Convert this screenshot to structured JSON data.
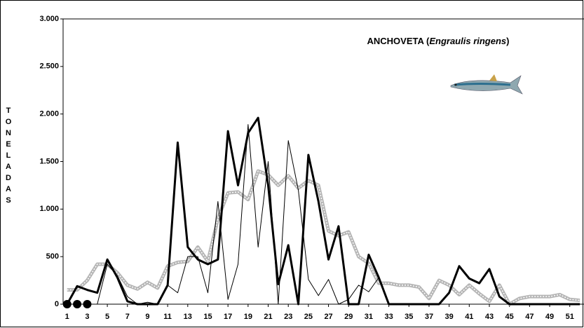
{
  "chart_data": {
    "type": "line",
    "title_parts": [
      {
        "text": "ANCHOVETA (",
        "italic": false
      },
      {
        "text": "Engraulis ringens",
        "italic": true
      },
      {
        "text": ")",
        "italic": false
      }
    ],
    "y_label": "TONELADAS",
    "x": [
      1,
      2,
      3,
      4,
      5,
      6,
      7,
      8,
      9,
      10,
      11,
      12,
      13,
      14,
      15,
      16,
      17,
      18,
      19,
      20,
      21,
      22,
      23,
      24,
      25,
      26,
      27,
      28,
      29,
      30,
      31,
      32,
      33,
      34,
      35,
      36,
      37,
      38,
      39,
      40,
      41,
      42,
      43,
      44,
      45,
      46,
      47,
      48,
      49,
      50,
      51,
      52
    ],
    "xlim": [
      0.6,
      53.6
    ],
    "xticks": [
      1,
      3,
      5,
      7,
      9,
      11,
      13,
      15,
      17,
      19,
      21,
      23,
      25,
      27,
      29,
      31,
      33,
      35,
      37,
      39,
      41,
      43,
      45,
      47,
      49,
      51,
      53
    ],
    "ylim": [
      0,
      3000
    ],
    "yticks": [
      0,
      500,
      {
        "value": 1000,
        "label": "1.000"
      },
      {
        "value": 1500,
        "label": "1.500"
      },
      {
        "value": 2000,
        "label": "2.000"
      },
      {
        "value": 2500,
        "label": "2.500"
      },
      {
        "value": 3000,
        "label": "3.000"
      }
    ],
    "grid": false,
    "series": [
      {
        "color": "#b5b5b5",
        "line_width": 5,
        "dashed_overlay": true,
        "marker": false,
        "values": [
          150,
          150,
          250,
          420,
          420,
          330,
          200,
          160,
          230,
          170,
          400,
          440,
          450,
          600,
          450,
          900,
          1170,
          1180,
          1100,
          1400,
          1360,
          1250,
          1350,
          1220,
          1300,
          1250,
          770,
          720,
          760,
          500,
          430,
          220,
          220,
          200,
          200,
          180,
          60,
          250,
          200,
          100,
          200,
          110,
          30,
          200,
          0,
          60,
          80,
          80,
          80,
          100,
          50,
          40
        ]
      },
      {
        "color": "#000000",
        "line_width": 1,
        "dashed_overlay": false,
        "marker": false,
        "values": [
          0,
          0,
          0,
          0,
          420,
          300,
          80,
          0,
          20,
          0,
          200,
          120,
          500,
          500,
          120,
          1080,
          50,
          420,
          1890,
          600,
          1500,
          0,
          1720,
          1200,
          260,
          90,
          260,
          0,
          50,
          200,
          130,
          280,
          0,
          0,
          0,
          0,
          0,
          0,
          0,
          0,
          0,
          0,
          0,
          0,
          0,
          0,
          0,
          0,
          0,
          0,
          0,
          0
        ]
      },
      {
        "color": "#000000",
        "line_width": 3,
        "dashed_overlay": false,
        "marker": false,
        "values": [
          0,
          190,
          150,
          120,
          470,
          280,
          30,
          0,
          0,
          0,
          200,
          1700,
          600,
          470,
          420,
          470,
          1820,
          1250,
          1800,
          1960,
          1250,
          210,
          620,
          0,
          1570,
          1080,
          470,
          820,
          0,
          0,
          520,
          280,
          0,
          0,
          0,
          0,
          0,
          0,
          120,
          400,
          270,
          220,
          370,
          80,
          0,
          0,
          0,
          0,
          0,
          0,
          0,
          0
        ]
      },
      {
        "color": "#000000",
        "line_width": 3,
        "dashed_overlay": false,
        "marker": true,
        "values": [
          0,
          0,
          0,
          null,
          null,
          null,
          null,
          null,
          null,
          null,
          null,
          null,
          null,
          null,
          null,
          null,
          null,
          null,
          null,
          null,
          null,
          null,
          null,
          null,
          null,
          null,
          null,
          null,
          null,
          null,
          null,
          null,
          null,
          null,
          null,
          null,
          null,
          null,
          null,
          null,
          null,
          null,
          null,
          null,
          null,
          null,
          null,
          null,
          null,
          null,
          null,
          null
        ]
      }
    ]
  }
}
